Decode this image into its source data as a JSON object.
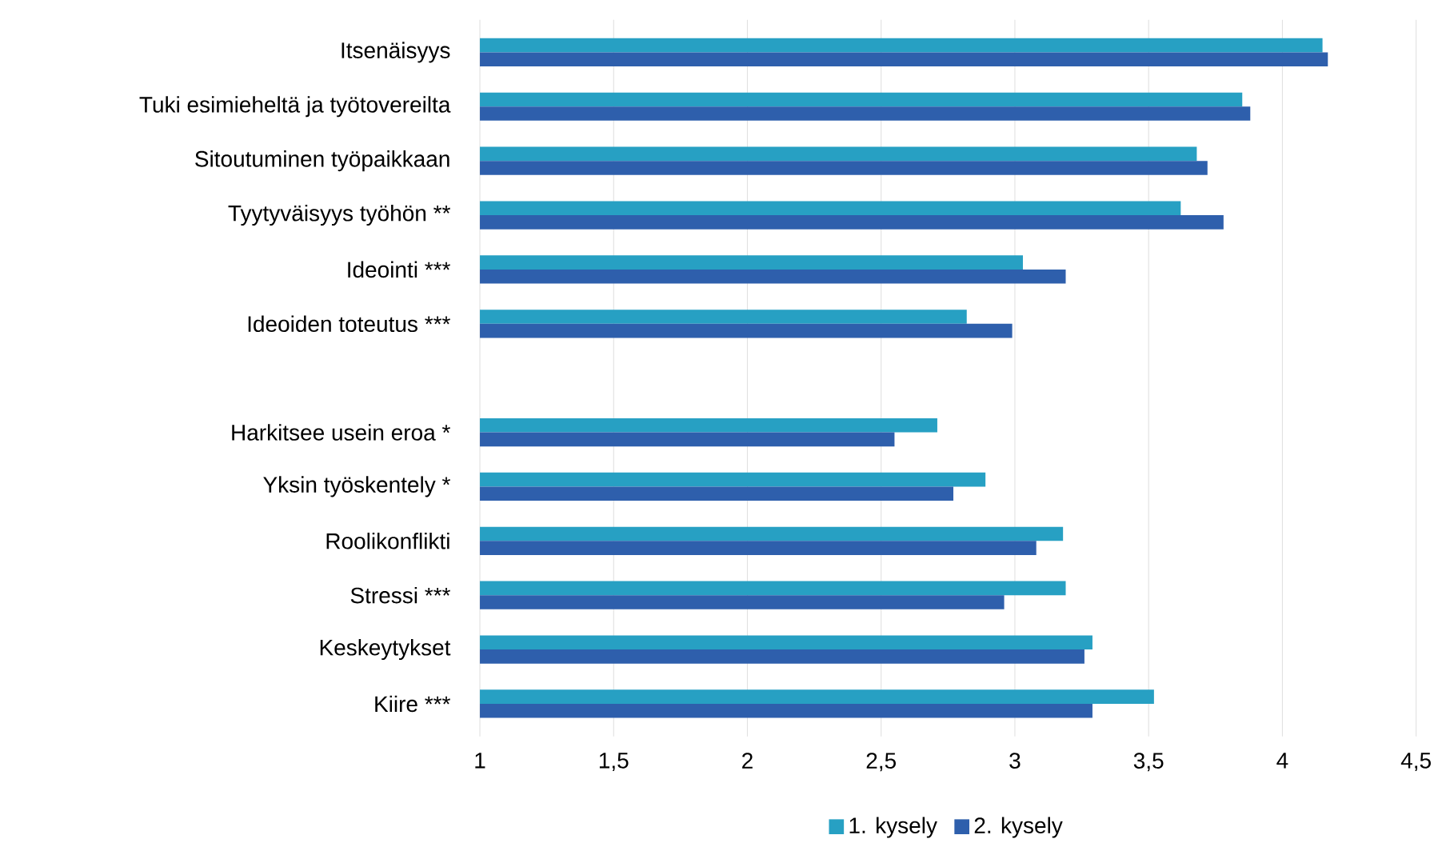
{
  "chart_data": {
    "type": "bar",
    "orientation": "horizontal",
    "categories": [
      "Itsenäisyys",
      "Tuki esimieheltä ja työtovereilta",
      "Sitoutuminen työpaikkaan",
      "Tyytyväisyys työhön **",
      "Ideointi ***",
      "Ideoiden toteutus ***",
      null,
      "Harkitsee usein eroa *",
      "Yksin työskentely *",
      "Roolikonflikti",
      "Stressi ***",
      "Keskeytykset",
      "Kiire ***"
    ],
    "series": [
      {
        "name": "1. kysely",
        "color": "#27a0c3",
        "values": [
          4.15,
          3.85,
          3.68,
          3.62,
          3.03,
          2.82,
          null,
          2.71,
          2.89,
          3.18,
          3.19,
          3.29,
          3.52
        ]
      },
      {
        "name": "2. kysely",
        "color": "#2e5fac",
        "values": [
          4.17,
          3.88,
          3.72,
          3.78,
          3.19,
          2.99,
          null,
          2.55,
          2.77,
          3.08,
          2.96,
          3.26,
          3.29
        ]
      }
    ],
    "xlim": [
      1,
      4.5
    ],
    "xticks": [
      {
        "value": 1,
        "label": "1"
      },
      {
        "value": 1.5,
        "label": "1,5"
      },
      {
        "value": 2,
        "label": "2"
      },
      {
        "value": 2.5,
        "label": "2,5"
      },
      {
        "value": 3,
        "label": "3"
      },
      {
        "value": 3.5,
        "label": "3,5"
      },
      {
        "value": 4,
        "label": "4"
      },
      {
        "value": 4.5,
        "label": "4,5"
      }
    ],
    "grid": "x",
    "legend": "bottom"
  }
}
